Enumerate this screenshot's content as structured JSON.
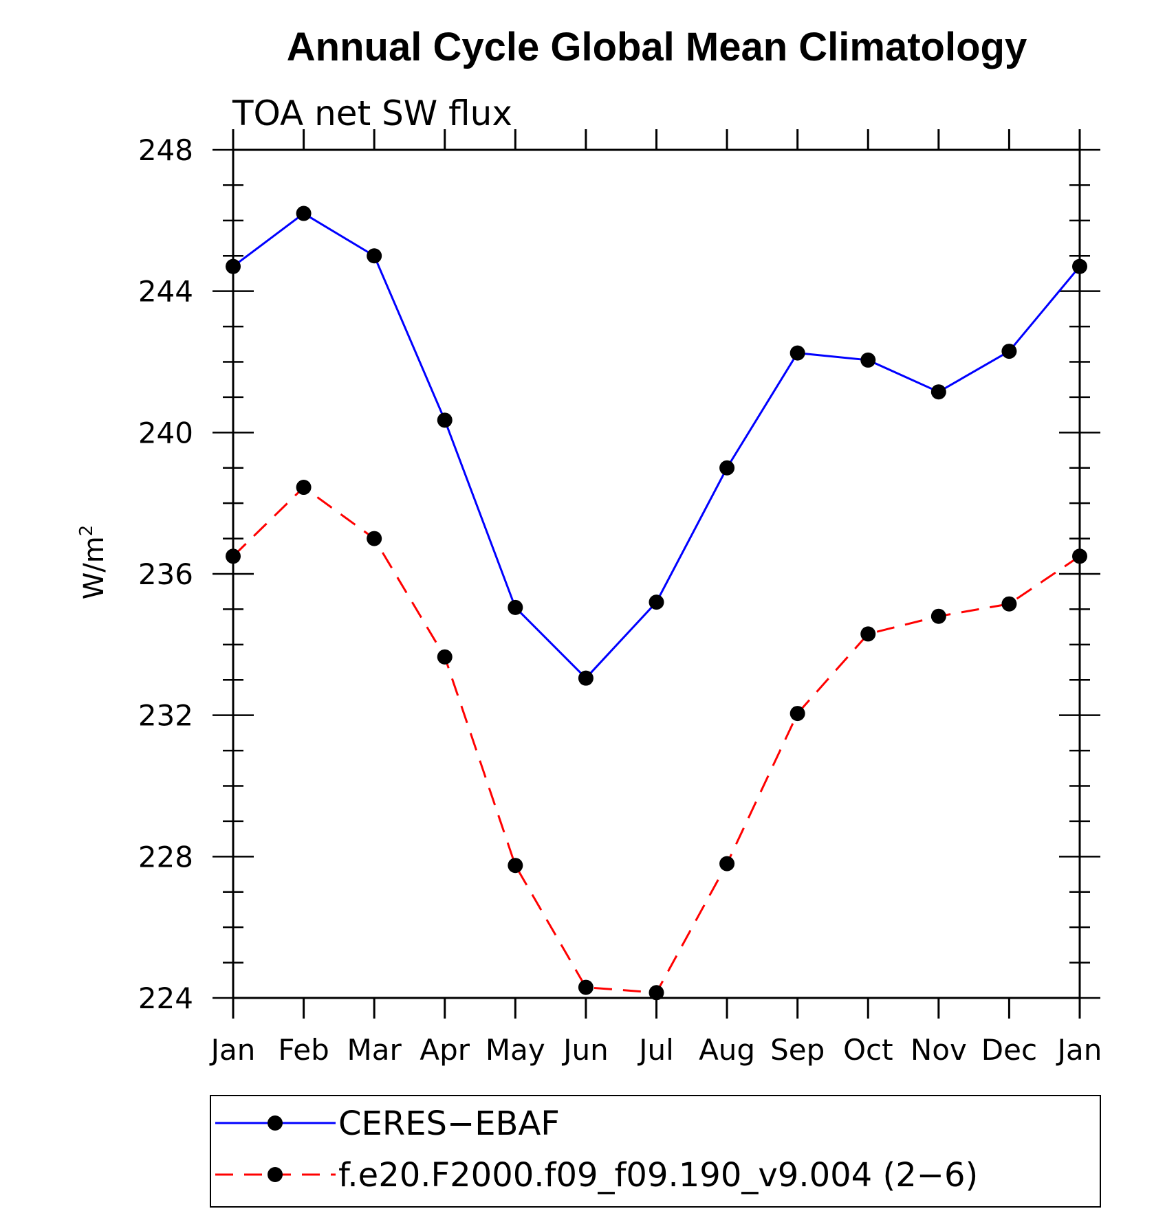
{
  "chart_data": {
    "type": "line",
    "title": "Annual Cycle Global Mean Climatology",
    "subtitle": "TOA net SW flux",
    "xlabel": "",
    "ylabel": "W/m",
    "ylabel_superscript": "2",
    "categories": [
      "Jan",
      "Feb",
      "Mar",
      "Apr",
      "May",
      "Jun",
      "Jul",
      "Aug",
      "Sep",
      "Oct",
      "Nov",
      "Dec",
      "Jan"
    ],
    "ylim": [
      224,
      248
    ],
    "yticks": [
      "224",
      "228",
      "232",
      "236",
      "240",
      "244",
      "248"
    ],
    "grid": false,
    "legend_position": "bottom",
    "series": [
      {
        "name": "CERES−EBAF",
        "color": "#0000ff",
        "dash": "solid",
        "marker": "filled-circle",
        "values": [
          244.7,
          246.2,
          245.0,
          240.35,
          235.05,
          233.05,
          235.2,
          239.0,
          242.25,
          242.05,
          241.15,
          242.3,
          244.7
        ]
      },
      {
        "name": "f.e20.F2000.f09_f09.190_v9.004 (2−6)",
        "color": "#ff0000",
        "dash": "dashed",
        "marker": "filled-circle",
        "values": [
          236.5,
          238.45,
          237.0,
          233.65,
          227.75,
          224.3,
          224.15,
          227.8,
          232.05,
          234.3,
          234.8,
          235.15,
          236.5
        ]
      }
    ]
  }
}
